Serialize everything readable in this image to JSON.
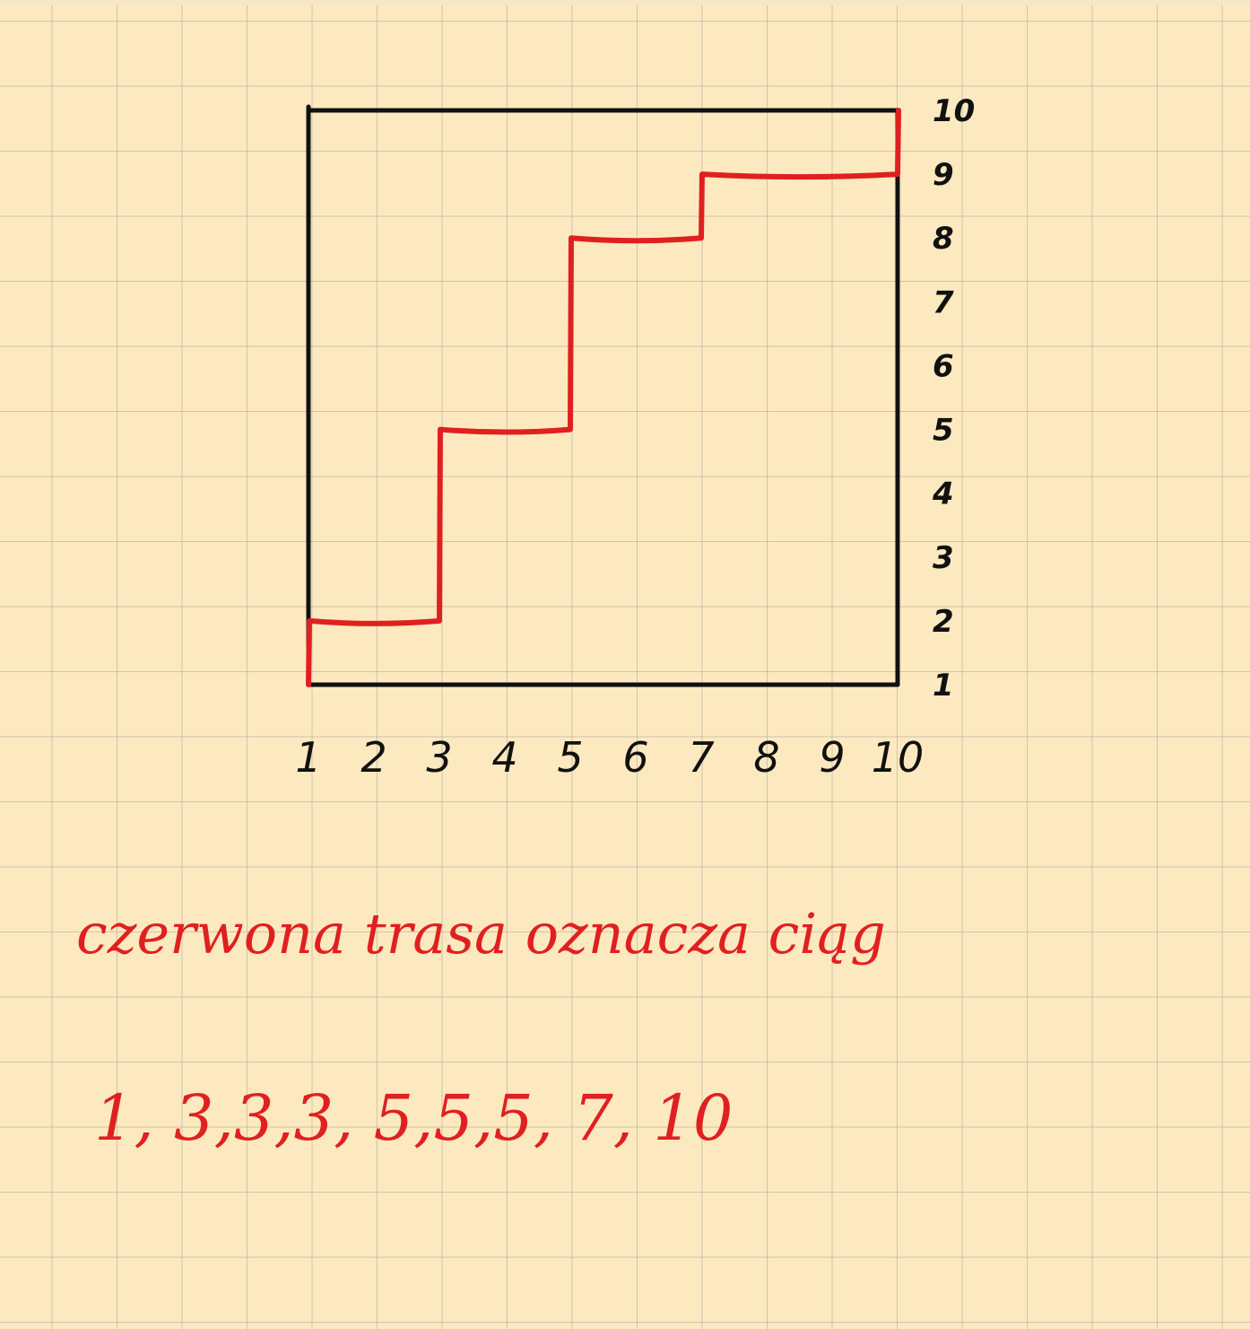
{
  "chart_data": {
    "type": "line",
    "step": true,
    "x_ticks": [
      "1",
      "2",
      "3",
      "4",
      "5",
      "6",
      "7",
      "8",
      "9",
      "10"
    ],
    "y_ticks": [
      "1",
      "2",
      "3",
      "4",
      "5",
      "6",
      "7",
      "8",
      "9",
      "10"
    ],
    "xlim": [
      1,
      10
    ],
    "ylim": [
      1,
      10
    ],
    "grid": false,
    "series": [
      {
        "points": [
          [
            1,
            1
          ],
          [
            1,
            2
          ],
          [
            3,
            2
          ],
          [
            3,
            5
          ],
          [
            5,
            5
          ],
          [
            5,
            8
          ],
          [
            7,
            8
          ],
          [
            7,
            9
          ],
          [
            10,
            9
          ],
          [
            10,
            10
          ]
        ]
      }
    ]
  },
  "colors": {
    "paper": "#fde9bf",
    "grid": "#a9a9b0",
    "ink": "#111111",
    "red": "#e02020"
  },
  "notes": {
    "line1": "czerwona trasa oznacza ciąg",
    "sequence": "1, 3,3,3, 5,5,5, 7, 10"
  }
}
